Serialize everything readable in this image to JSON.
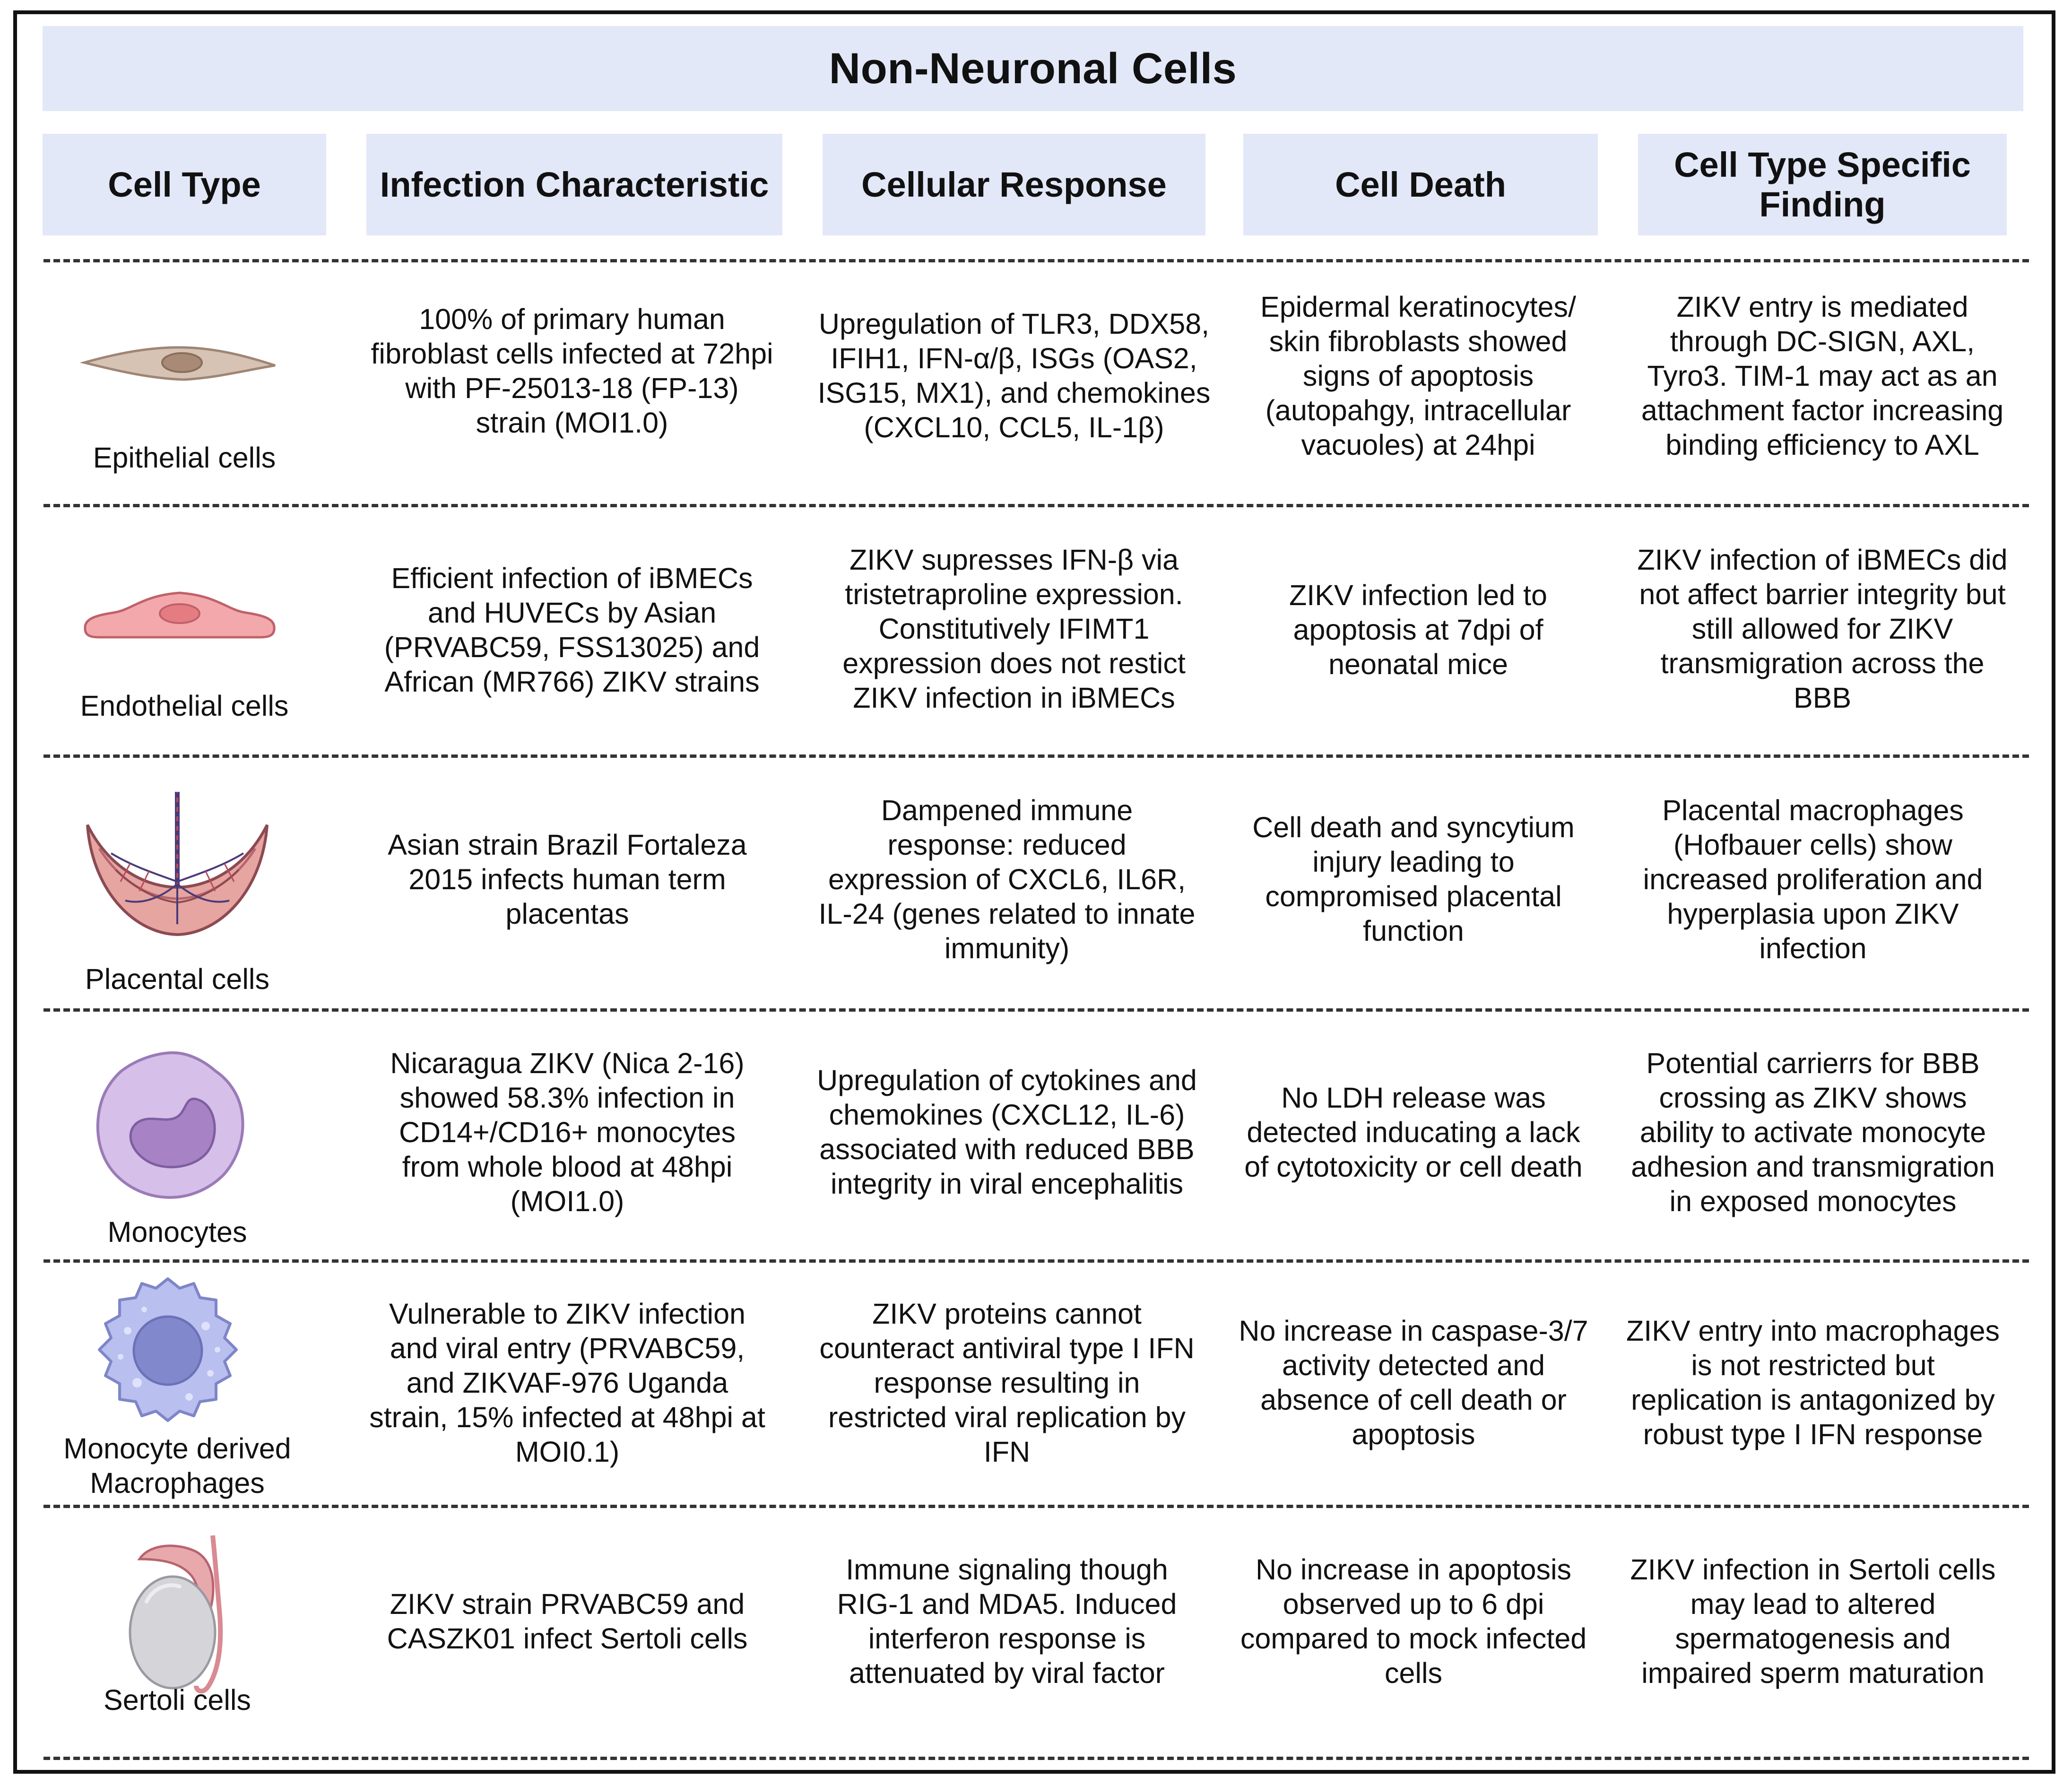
{
  "title": "Non-Neuronal Cells",
  "columns": [
    "Cell Type",
    "Infection Characteristic",
    "Cellular Response",
    "Cell Death",
    "Cell Type Specific Finding"
  ],
  "rows": [
    {
      "cell_type": "Epithelial cells",
      "icon": "epithelial-cell-icon",
      "infection": "100% of primary human fibroblast cells infected at 72hpi with PF-25013-18 (FP-13) strain (MOI1.0)",
      "response": "Upregulation of TLR3, DDX58, IFIH1, IFN-α/β, ISGs (OAS2, ISG15, MX1), and chemokines (CXCL10, CCL5, IL-1β)",
      "death": "Epidermal keratinocytes/ skin fibroblasts showed signs of apoptosis (autopahgy, intracellular vacuoles) at 24hpi",
      "finding": "ZIKV entry is mediated through DC-SIGN, AXL, Tyro3. TIM-1 may act as an attachment factor increasing binding efficiency to AXL"
    },
    {
      "cell_type": "Endothelial cells",
      "icon": "endothelial-cell-icon",
      "infection": "Efficient infection of iBMECs and HUVECs by Asian (PRVABC59, FSS13025) and African (MR766) ZIKV strains",
      "response": "ZIKV supresses IFN-β via tristetraproline expression. Constitutively IFIMT1 expression does not restict ZIKV infection in iBMECs",
      "death": "ZIKV infection led to apoptosis at 7dpi of neonatal mice",
      "finding": "ZIKV infection of iBMECs did not affect barrier integrity but still allowed for ZIKV transmigration across the BBB"
    },
    {
      "cell_type": "Placental cells",
      "icon": "placenta-icon",
      "infection": "Asian strain Brazil Fortaleza 2015 infects human term placentas",
      "response": "Dampened immune response: reduced  expression of CXCL6, IL6R, IL-24 (genes related to innate immunity)",
      "death": "Cell death and syncytium injury leading to compromised placental function",
      "finding": "Placental macrophages (Hofbauer cells) show increased proliferation and hyperplasia upon ZIKV infection"
    },
    {
      "cell_type": "Monocytes",
      "icon": "monocyte-icon",
      "infection": "Nicaragua ZIKV (Nica 2-16) showed 58.3% infection in CD14+/CD16+ monocytes from whole blood at 48hpi (MOI1.0)",
      "response": "Upregulation of cytokines and chemokines (CXCL12, IL-6) associated with reduced BBB integrity in viral encephalitis",
      "death": "No LDH release was detected inducating a lack of cytotoxicity or cell death",
      "finding": "Potential carrierrs for BBB crossing as ZIKV shows ability to activate monocyte adhesion and transmigration in exposed monocytes"
    },
    {
      "cell_type": "Monocyte derived Macrophages",
      "icon": "macrophage-icon",
      "infection": "Vulnerable to ZIKV infection and viral entry (PRVABC59, and ZIKVAF-976 Uganda strain, 15% infected at 48hpi at MOI0.1)",
      "response": "ZIKV proteins cannot counteract antiviral type I IFN response resulting in restricted viral replication by IFN",
      "death": "No increase in caspase-3/7 activity detected and absence of cell death or apoptosis",
      "finding": "ZIKV entry into macrophages is not restricted but replication is antagonized by robust type I IFN response"
    },
    {
      "cell_type": "Sertoli cells",
      "icon": "testis-icon",
      "infection": "ZIKV strain PRVABC59 and CASZK01 infect Sertoli cells",
      "response": "Immune signaling though RIG-1 and MDA5. Induced interferon response is attenuated by viral factor",
      "death": "No increase in apoptosis observed up to 6 dpi compared to mock infected cells",
      "finding": "ZIKV infection in Sertoli cells may lead to altered spermatogenesis and impaired sperm maturation"
    }
  ]
}
